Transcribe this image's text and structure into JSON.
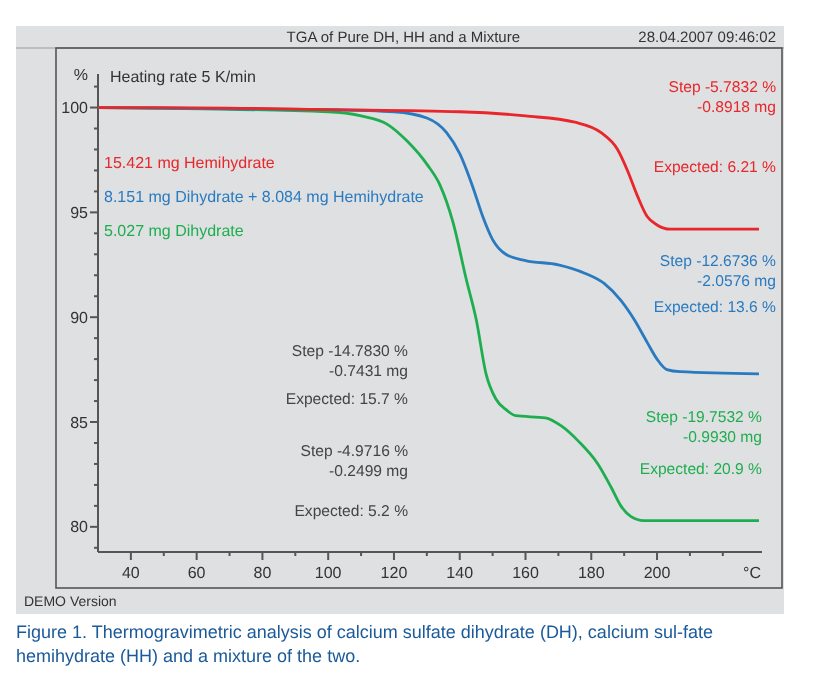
{
  "chart_data": {
    "type": "line",
    "title": "TGA of Pure DH, HH and a Mixture",
    "xlabel": "°C",
    "ylabel": "%",
    "xlim": [
      30,
      238
    ],
    "ylim": [
      78.8,
      101.6
    ],
    "xticks": [
      40,
      {
        "value": 50,
        "label": null
      },
      60,
      {
        "value": 70,
        "label": null
      },
      80,
      {
        "value": 90,
        "label": null
      },
      100,
      {
        "value": 110,
        "label": null
      },
      120,
      {
        "value": 130,
        "label": null
      },
      140,
      {
        "value": 150,
        "label": null
      },
      160,
      {
        "value": 170,
        "label": null
      },
      180,
      {
        "value": 190,
        "label": null
      },
      200,
      {
        "value": 210,
        "label": null
      },
      {
        "value": 220,
        "label": null
      }
    ],
    "yticks": [
      {
        "value": 79,
        "label": null
      },
      80,
      {
        "value": 81,
        "label": null
      },
      {
        "value": 82,
        "label": null
      },
      {
        "value": 83,
        "label": null
      },
      {
        "value": 84,
        "label": null
      },
      85,
      {
        "value": 86,
        "label": null
      },
      {
        "value": 87,
        "label": null
      },
      {
        "value": 88,
        "label": null
      },
      {
        "value": 89,
        "label": null
      },
      90,
      {
        "value": 91,
        "label": null
      },
      {
        "value": 92,
        "label": null
      },
      {
        "value": 93,
        "label": null
      },
      {
        "value": 94,
        "label": null
      },
      95,
      {
        "value": 96,
        "label": null
      },
      {
        "value": 97,
        "label": null
      },
      {
        "value": 98,
        "label": null
      },
      {
        "value": 99,
        "label": null
      },
      100,
      {
        "value": 101,
        "label": null
      }
    ],
    "grid": false,
    "line_style": "solid",
    "marker": "none",
    "series": [
      {
        "name": "15.421 mg Hemihydrate",
        "color": "#e8262b",
        "x": [
          30,
          50,
          100,
          140,
          160,
          175,
          183,
          188,
          191,
          194,
          197,
          200,
          204,
          231
        ],
        "values": [
          100,
          100,
          99.9,
          99.8,
          99.6,
          99.3,
          98.8,
          98,
          97,
          95.8,
          94.8,
          94.4,
          94.2,
          94.2
        ]
      },
      {
        "name": "8.151 mg Dihydrate + 8.084 mg Hemihydrate",
        "color": "#2a7ac0",
        "x": [
          30,
          100,
          120,
          130,
          136,
          140,
          144,
          147,
          150,
          154,
          160,
          170,
          178,
          184,
          189,
          193,
          197,
          200,
          203,
          207,
          231
        ],
        "values": [
          100,
          99.9,
          99.8,
          99.5,
          98.8,
          97.8,
          96.2,
          94.8,
          93.7,
          93.0,
          92.7,
          92.5,
          92.1,
          91.6,
          90.8,
          89.9,
          88.8,
          88.0,
          87.5,
          87.4,
          87.3
        ]
      },
      {
        "name": "5.027 mg Dihydrate",
        "color": "#1fae4f",
        "x": [
          30,
          100,
          110,
          118,
          124,
          130,
          134,
          138,
          142,
          145,
          148,
          151,
          154,
          157,
          166,
          171,
          176,
          182,
          186,
          189,
          192,
          196,
          231
        ],
        "values": [
          100,
          99.8,
          99.6,
          99.2,
          98.4,
          97.3,
          96.3,
          94.5,
          91.8,
          89.9,
          87.3,
          86.1,
          85.6,
          85.3,
          85.2,
          84.8,
          84.1,
          83.0,
          81.9,
          81.0,
          80.5,
          80.3,
          80.3
        ]
      }
    ],
    "annotations": [
      "28.04.2007 09:46:02",
      "Heating rate 5 K/min",
      "DEMO Version",
      "Figure 1. Thermogravimetric analysis of calcium sulfate dihydrate (DH), calcium sul-fate hemihydrate (HH) and a mixture of the two.",
      "Step  -5.7832 %\n-0.8918 mg",
      "Expected: 6.21 %",
      "Step  -12.6736 %\n-2.0576 mg",
      "Expected: 13.6 %",
      "Step  -14.7830 %\n-0.7431 mg",
      "Expected: 15.7 %",
      "Step  -4.9716 %\n-0.2499 mg",
      "Expected: 5.2 %",
      "Step  -19.7532 %\n-0.9930 mg",
      "Expected: 20.9 %"
    ]
  }
}
